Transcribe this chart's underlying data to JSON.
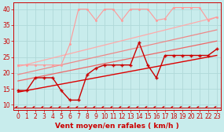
{
  "background_color": "#c8ecec",
  "grid_color": "#b0d8d8",
  "xlabel": "Vent moyen/en rafales ( km/h )",
  "xlim": [
    -0.5,
    23.5
  ],
  "ylim": [
    8.5,
    42
  ],
  "yticks": [
    10,
    15,
    20,
    25,
    30,
    35,
    40
  ],
  "xticks": [
    0,
    1,
    2,
    3,
    4,
    5,
    6,
    7,
    8,
    9,
    10,
    11,
    12,
    13,
    14,
    15,
    16,
    17,
    18,
    19,
    20,
    21,
    22,
    23
  ],
  "line_dark_x": [
    0,
    1,
    2,
    3,
    4,
    5,
    6,
    7,
    8,
    9,
    10,
    11,
    12,
    13,
    14,
    15,
    16,
    17,
    18,
    19,
    20,
    21,
    22,
    23
  ],
  "line_dark_y": [
    14.5,
    14.5,
    18.5,
    18.5,
    18.5,
    14.5,
    11.5,
    11.5,
    19.5,
    21.5,
    22.5,
    22.5,
    22.5,
    22.5,
    29.5,
    22.5,
    18.5,
    25.5,
    25.5,
    25.5,
    25.5,
    25.5,
    25.5,
    27.5
  ],
  "line_light_x": [
    0,
    1,
    2,
    3,
    4,
    5,
    6,
    7,
    8,
    9,
    10,
    11,
    12,
    13,
    14,
    15,
    16,
    17,
    18,
    19,
    20,
    21,
    22,
    23
  ],
  "line_light_y": [
    22.5,
    22.5,
    22.5,
    22.5,
    22.5,
    22.5,
    29.0,
    40.0,
    40.0,
    36.5,
    40.0,
    40.0,
    36.5,
    40.0,
    40.0,
    40.0,
    36.5,
    37.0,
    40.5,
    40.5,
    40.5,
    40.5,
    36.5,
    37.5
  ],
  "reg_lines": [
    {
      "x": [
        0,
        23
      ],
      "y": [
        14.0,
        25.5
      ],
      "color": "#dd0000",
      "lw": 1.0
    },
    {
      "x": [
        0,
        23
      ],
      "y": [
        17.5,
        30.0
      ],
      "color": "#ee6666",
      "lw": 0.9
    },
    {
      "x": [
        0,
        23
      ],
      "y": [
        19.5,
        33.5
      ],
      "color": "#ee8888",
      "lw": 0.9
    },
    {
      "x": [
        0,
        23
      ],
      "y": [
        22.0,
        37.5
      ],
      "color": "#ffaaaa",
      "lw": 0.9
    }
  ],
  "line_dark_color": "#cc0000",
  "line_light_color": "#ff9999",
  "arrow_color": "#cc0000",
  "xlabel_color": "#cc0000",
  "tick_color": "#cc0000",
  "label_fontsize": 6.5,
  "tick_fontsize": 5.5
}
